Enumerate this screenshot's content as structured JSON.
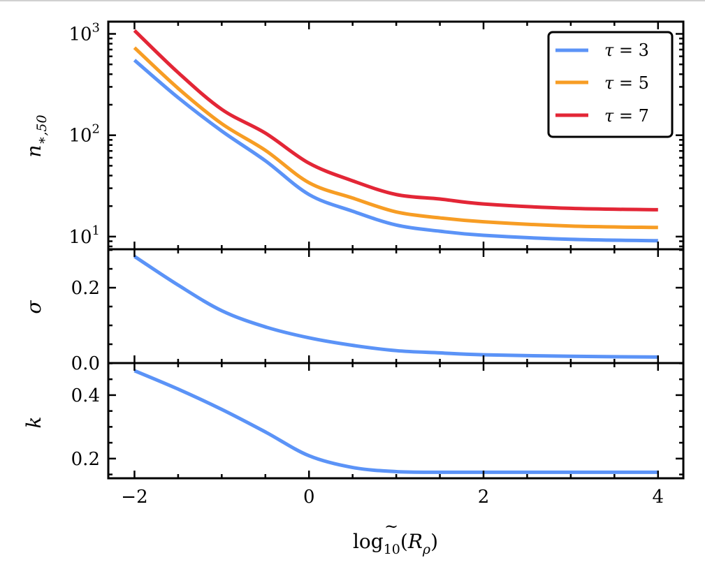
{
  "chart_data": [
    {
      "type": "line",
      "panel": "top",
      "ylabel": "n_{*,50}",
      "ylabel_main": "n",
      "ylabel_sub": "∗,50",
      "yscale": "log",
      "ylim": [
        7.5,
        1320
      ],
      "xlim": [
        -2.3,
        4.29
      ],
      "yticks": [
        10,
        100,
        1000
      ],
      "ytick_labels": [
        {
          "base": "10",
          "exp": "1"
        },
        {
          "base": "10",
          "exp": "2"
        },
        {
          "base": "10",
          "exp": "3"
        }
      ],
      "x": [
        -2,
        -1.5,
        -1,
        -0.5,
        0,
        0.5,
        1,
        1.5,
        2,
        3,
        4
      ],
      "series": [
        {
          "name": "τ = 3",
          "color": "#5b93f7",
          "values": [
            550,
            235,
            110,
            56,
            26,
            17.8,
            13,
            11.3,
            10.3,
            9.4,
            9.1
          ]
        },
        {
          "name": "τ = 5",
          "color": "#f79d24",
          "values": [
            730,
            290,
            130,
            71,
            34,
            24,
            17.5,
            15.3,
            14,
            12.7,
            12.3
          ]
        },
        {
          "name": "τ = 7",
          "color": "#e32636",
          "values": [
            1080,
            415,
            180,
            105,
            53,
            35.5,
            26,
            23.5,
            21,
            19,
            18.4
          ]
        }
      ],
      "legend": {
        "placement": "top-right",
        "entries": [
          "τ = 3",
          "τ = 5",
          "τ = 7"
        ],
        "symbols": [
          "τ",
          "τ",
          "τ"
        ],
        "values": [
          "3",
          "5",
          "7"
        ]
      }
    },
    {
      "type": "line",
      "panel": "middle",
      "ylabel": "σ",
      "ylim": [
        0.0,
        0.302
      ],
      "xlim": [
        -2.3,
        4.29
      ],
      "yticks": [
        0.0,
        0.2
      ],
      "ytick_labels": [
        "0.0",
        "0.2"
      ],
      "x": [
        -2,
        -1.5,
        -1,
        -0.5,
        0,
        0.5,
        1,
        1.5,
        2,
        3,
        4
      ],
      "series": [
        {
          "name": "σ",
          "color": "#5b93f7",
          "values": [
            0.283,
            0.207,
            0.139,
            0.096,
            0.067,
            0.047,
            0.033,
            0.027,
            0.022,
            0.018,
            0.016
          ]
        }
      ]
    },
    {
      "type": "line",
      "panel": "bottom",
      "ylabel": "k",
      "ylim": [
        0.138,
        0.501
      ],
      "xlim": [
        -2.3,
        4.29
      ],
      "yticks": [
        0.2,
        0.4
      ],
      "ytick_labels": [
        "0.2",
        "0.4"
      ],
      "xticks": [
        -2,
        0,
        2,
        4
      ],
      "xtick_labels": [
        "−2",
        "0",
        "2",
        "4"
      ],
      "xlabel": "log10(R̃ρ)",
      "xlabel_parts": {
        "fn": "log",
        "sub": "10",
        "open": "(",
        "var": "R",
        "tilde": "~",
        "var_sub": "ρ",
        "close": ")"
      },
      "x": [
        -2,
        -1.5,
        -1,
        -0.5,
        0,
        0.5,
        1,
        1.5,
        2,
        3,
        4
      ],
      "series": [
        {
          "name": "k",
          "color": "#5b93f7",
          "values": [
            0.477,
            0.419,
            0.355,
            0.284,
            0.209,
            0.172,
            0.159,
            0.157,
            0.157,
            0.157,
            0.157
          ]
        }
      ]
    }
  ]
}
